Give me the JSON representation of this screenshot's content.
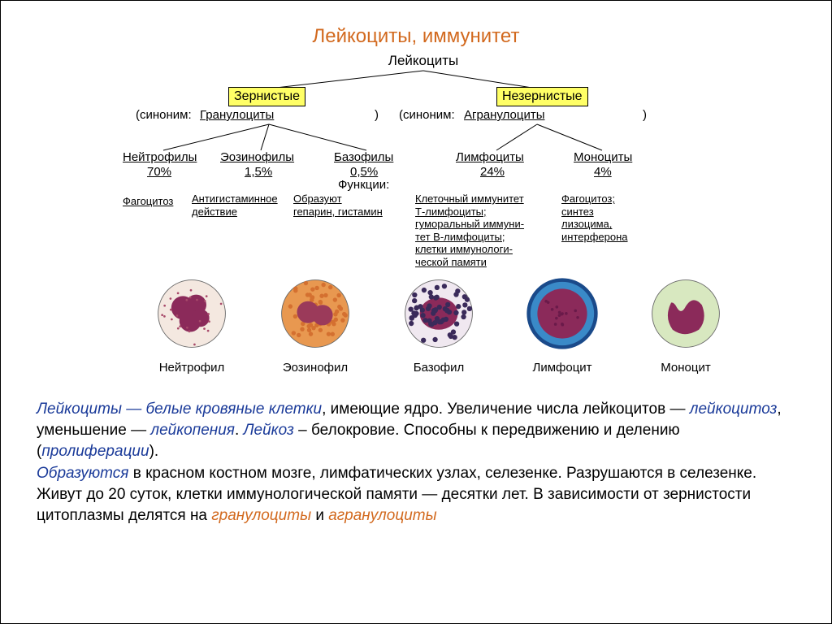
{
  "title": "Лейкоциты, иммунитет",
  "tree": {
    "root": "Лейкоциты",
    "left": {
      "box": "Зернистые",
      "syn_prefix": "(синоним:",
      "syn": "Гранулоциты",
      "syn_suffix": ")",
      "children": [
        {
          "name": "Нейтрофилы",
          "pct": "70%",
          "func": "Фагоцитоз"
        },
        {
          "name": "Эозинофилы",
          "pct": "1,5%",
          "func": "Антигистаминное\nдействие"
        },
        {
          "name": "Базофилы",
          "pct": "0,5%",
          "func": "Образуют\nгепарин, гистамин"
        }
      ]
    },
    "right": {
      "box": "Незернистые",
      "syn_prefix": "(синоним:",
      "syn": "Агранулоциты",
      "syn_suffix": ")",
      "children": [
        {
          "name": "Лимфоциты",
          "pct": "24%",
          "func": "Клеточный иммунитет\nТ-лимфоциты;\nгуморальный иммуни-\nтет В-лимфоциты;\nклетки иммунологи-\nческой памяти"
        },
        {
          "name": "Моноциты",
          "pct": "4%",
          "func": "Фагоцитоз;\nсинтез\nлизоцима,\nинтерферона"
        }
      ]
    },
    "functions_label": "Функции:"
  },
  "cells": [
    {
      "name": "Нейтрофил",
      "cytoplasm": "#f4e8e0",
      "nucleus": "#8b2a5a",
      "granules": "#a84a6a",
      "type": "neutrophil"
    },
    {
      "name": "Эозинофил",
      "cytoplasm": "#e89850",
      "nucleus": "#9b3a5a",
      "granules": "#d47030",
      "type": "eosinophil"
    },
    {
      "name": "Базофил",
      "cytoplasm": "#f0e8f0",
      "nucleus": "#8b2a5a",
      "granules": "#3a2a5a",
      "type": "basophil"
    },
    {
      "name": "Лимфоцит",
      "cytoplasm": "#3a8ac8",
      "nucleus": "#8b2a5a",
      "granules": null,
      "type": "lymphocyte"
    },
    {
      "name": "Моноцит",
      "cytoplasm": "#d8e8c0",
      "nucleus": "#8b2a5a",
      "granules": null,
      "type": "monocyte"
    }
  ],
  "description": {
    "p1a": "Лейкоциты — белые кровяные клетки",
    "p1b": ", имеющие ядро. Увеличение числа лейкоцитов — ",
    "p1c": "лейкоцитоз",
    "p1d": ", уменьшение — ",
    "p1e": "лейкопения",
    "p1f": ". ",
    "p1g": "Лейкоз",
    "p1h": " – белокровие. Способны к передвижению и делению (",
    "p1i": "пролиферации",
    "p1j": ").",
    "p2a": "Образуются",
    "p2b": " в красном костном мозге, лимфатических узлах, селезенке. Разрушаются в селезенке. Живут до 20 суток, клетки иммунологической памяти — десятки лет. В зависимости от зернистости цитоплазмы делятся на ",
    "p2c": "гранулоциты",
    "p2d": " и ",
    "p2e": "агранулоциты"
  },
  "colors": {
    "title": "#d2691e",
    "blue": "#1a3a99",
    "orange": "#d2691e",
    "box_bg": "#ffff66"
  }
}
